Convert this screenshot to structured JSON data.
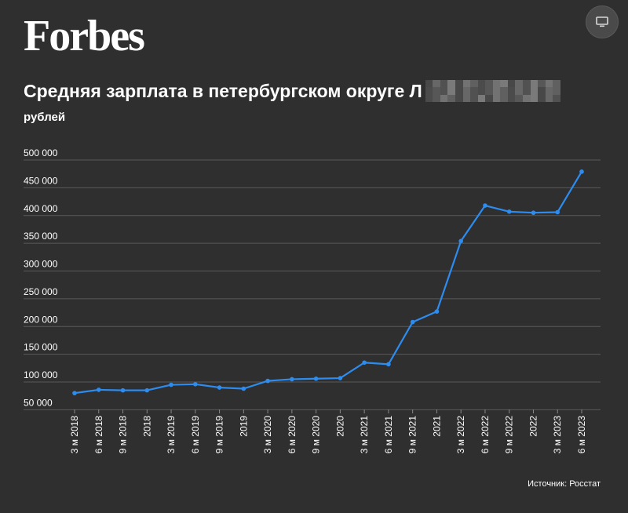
{
  "brand": {
    "logo_text": "Forbes"
  },
  "controls": {
    "present_icon": "monitor-icon"
  },
  "chart_data": {
    "type": "line",
    "title": "Средняя зарплата в петербургском округе Л",
    "subtitle": "рублей",
    "ylim": [
      50000,
      500000
    ],
    "y_ticks": [
      "500 000",
      "450 000",
      "400 000",
      "350 000",
      "300 000",
      "250 000",
      "200 000",
      "150 000",
      "100 000",
      "50 000"
    ],
    "y_tick_values": [
      500000,
      450000,
      400000,
      350000,
      300000,
      250000,
      200000,
      150000,
      100000,
      50000
    ],
    "categories": [
      "3 м 2018",
      "6 м 2018",
      "9 м 2018",
      "2018",
      "3 м 2019",
      "6 м 2019",
      "9 м 2019",
      "2019",
      "3 м 2020",
      "6 м 2020",
      "9 м 2020",
      "2020",
      "3 м 2021",
      "6 м 2021",
      "9 м 2021",
      "2021",
      "3 м 2022",
      "6 м 2022",
      "9 м 2022",
      "2022",
      "3 м 2023",
      "6 м 2023"
    ],
    "series": [
      {
        "values": [
          80000,
          86000,
          85000,
          85000,
          95000,
          96000,
          90000,
          88000,
          102000,
          105000,
          106000,
          107000,
          135000,
          132000,
          208000,
          227000,
          354000,
          418000,
          407000,
          405000,
          406000,
          479000
        ]
      }
    ],
    "grid": true,
    "line_color": "#2d8cf0",
    "grid_color": "#5a5a5a"
  },
  "source": {
    "text": "Источник: Росстат"
  }
}
